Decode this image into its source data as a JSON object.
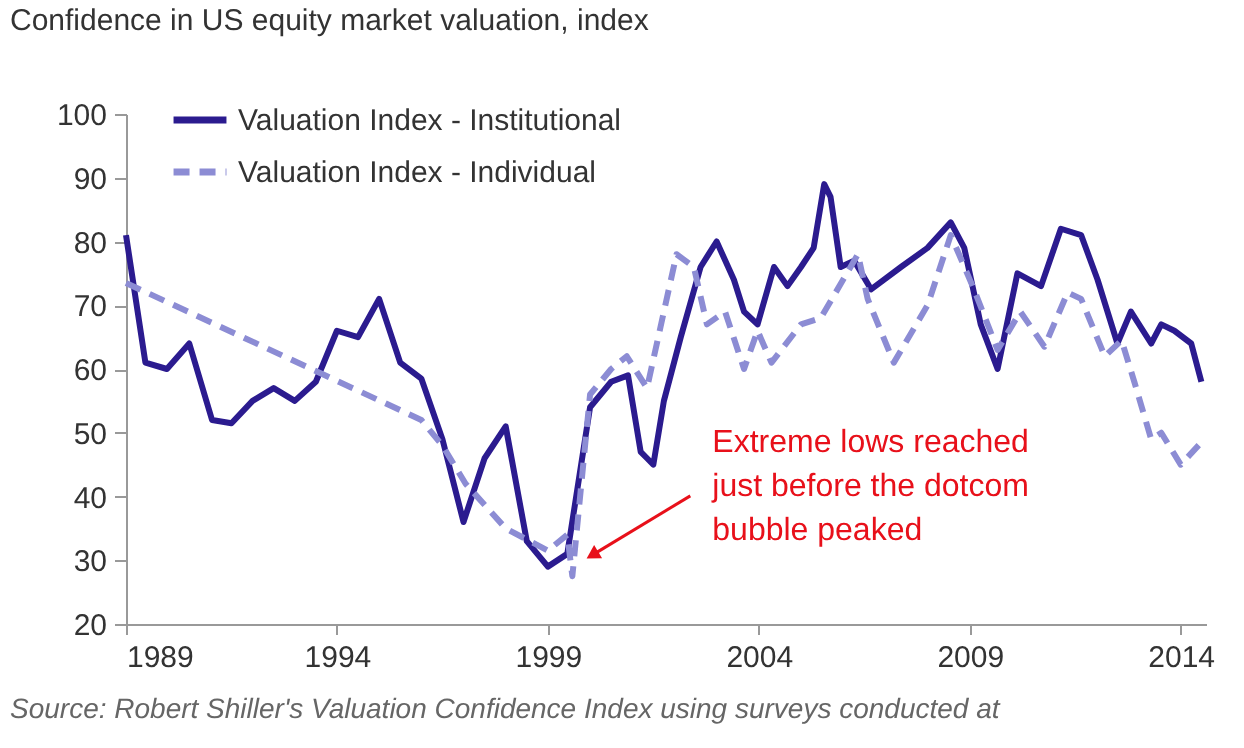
{
  "chart_data": {
    "type": "line",
    "title": "Confidence in US equity market valuation, index",
    "xlim": [
      1989,
      2014.6
    ],
    "xticks": [
      1989,
      1994,
      1999,
      2004,
      2009,
      2014
    ],
    "ylim": [
      20,
      100
    ],
    "yticks": [
      20,
      30,
      40,
      50,
      60,
      70,
      80,
      90,
      100
    ],
    "grid": false,
    "legend": "top left",
    "marker": "none",
    "series": [
      {
        "name": "Valuation Index - Institutional",
        "color": "#2b1b8f",
        "line_style": "solid",
        "x": [
          1989,
          1989.46,
          1989.97,
          1990.5,
          1991.04,
          1991.5,
          1992.0,
          1992.5,
          1993.0,
          1993.5,
          1994.0,
          1994.5,
          1995.0,
          1995.5,
          1996.0,
          1996.5,
          1997.0,
          1997.5,
          1998.0,
          1998.5,
          1999.0,
          1999.46,
          2000.0,
          2000.5,
          2000.9,
          2001.2,
          2001.35,
          2001.5,
          2001.75,
          2002.15,
          2002.62,
          2003.0,
          2003.41,
          2003.65,
          2003.97,
          2004.36,
          2004.68,
          2005.0,
          2005.3,
          2005.55,
          2005.7,
          2005.94,
          2006.26,
          2006.66,
          2007.37,
          2008.0,
          2008.55,
          2008.87,
          2009.26,
          2009.66,
          2010.13,
          2010.69,
          2011.16,
          2011.64,
          2012.03,
          2012.5,
          2012.82,
          2013.3,
          2013.54,
          2013.85,
          2014.25,
          2014.49
        ],
        "values": [
          81,
          61,
          60,
          64,
          52,
          51.5,
          55,
          57,
          55,
          58,
          66,
          65,
          71,
          61,
          58.5,
          49,
          36,
          46,
          51,
          33,
          29,
          31,
          54,
          58,
          59,
          47,
          46,
          45,
          55,
          65,
          76,
          80,
          74,
          69,
          67,
          76,
          73,
          76,
          79,
          89,
          87,
          76,
          77,
          72.5,
          76,
          79,
          83,
          79,
          67,
          60,
          75,
          73,
          82,
          81,
          74,
          64,
          69,
          64,
          67,
          66,
          64,
          58
        ]
      },
      {
        "name": "Valuation Index - Individual",
        "color": "#8c8cd4",
        "line_style": "dashed",
        "x": [
          1989,
          1996.0,
          1996.5,
          1997.05,
          1998.0,
          1999.0,
          1999.46,
          1999.58,
          2000.0,
          2000.5,
          2000.87,
          2001.35,
          2002.05,
          2002.46,
          2002.77,
          2003.2,
          2003.65,
          2003.97,
          2004.3,
          2005.0,
          2005.47,
          2006.35,
          2006.58,
          2007.2,
          2008.0,
          2008.55,
          2009.1,
          2009.66,
          2010.2,
          2010.77,
          2011.32,
          2011.64,
          2012.2,
          2012.6,
          2012.9,
          2013.3,
          2013.54,
          2014.0,
          2014.56
        ],
        "values": [
          73.5,
          52,
          48,
          42,
          35,
          31.5,
          34,
          27.5,
          56,
          60,
          62,
          57,
          78,
          76,
          67,
          69,
          60,
          66,
          61,
          67,
          68,
          78,
          71,
          61,
          70,
          81,
          72.5,
          63,
          69,
          63.5,
          72,
          71,
          62,
          64.5,
          58,
          49,
          50,
          45,
          49
        ]
      }
    ],
    "annotations": [
      {
        "text": "Extreme lows reached\njust before the dotcom\nbubble peaked",
        "x": 2000.1,
        "y": 31
      },
      "Source: Robert Shiller's Valuation Confidence Index using surveys conducted at"
    ]
  }
}
